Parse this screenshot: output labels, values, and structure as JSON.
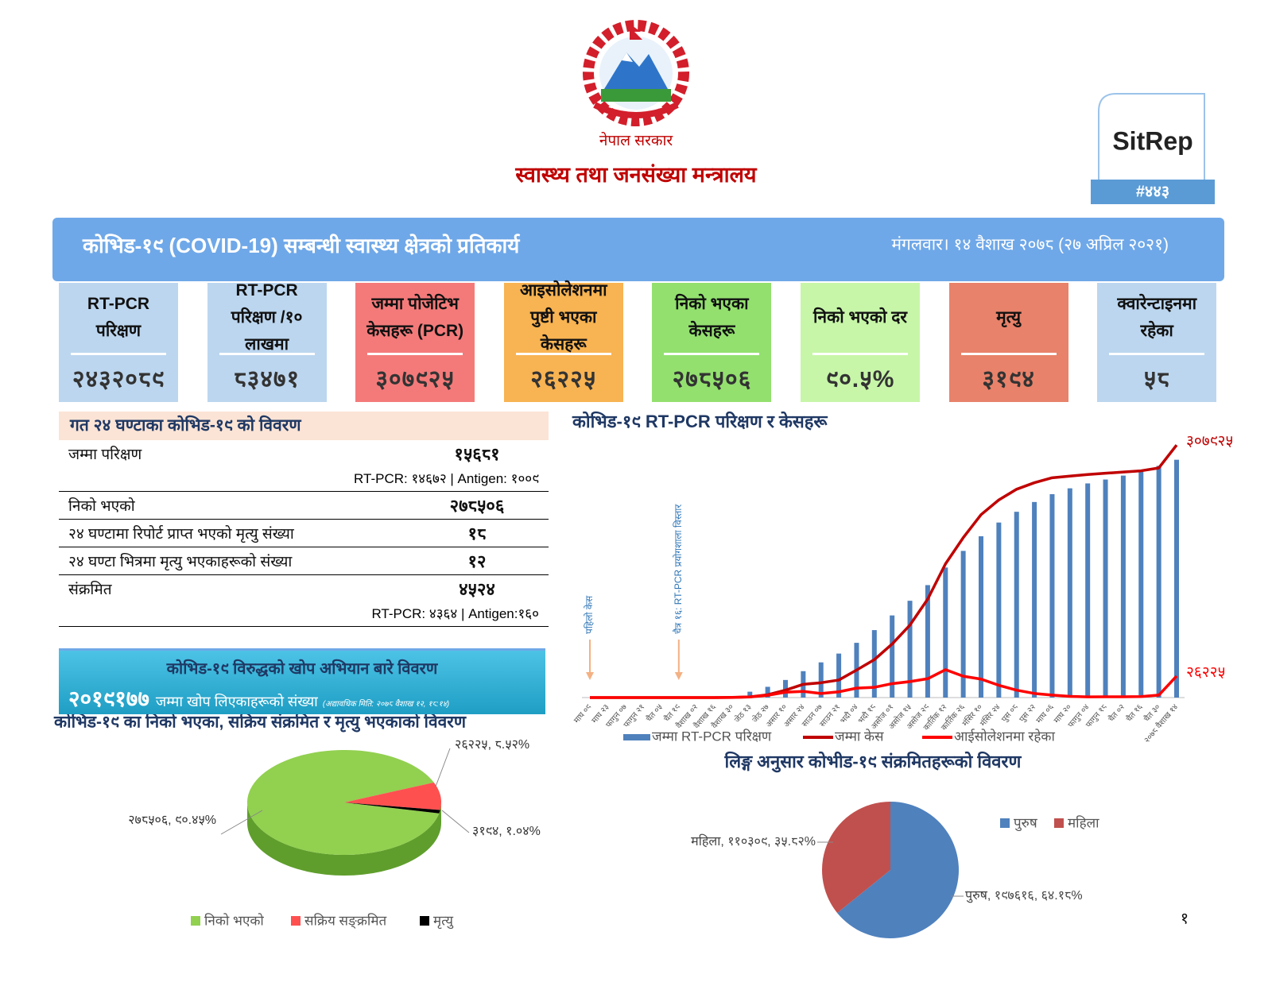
{
  "header": {
    "government": "नेपाल सरकार",
    "ministry": "स्वास्थ्य तथा जनसंख्या मन्त्रालय",
    "report": "SitRep",
    "report_number": "#४४३"
  },
  "banner": {
    "title": "कोभिड-१९ (COVID-19) सम्बन्धी स्वास्थ्य क्षेत्रको प्रतिकार्य",
    "date": "मंगलवार। १४ वैशाख २०७८ (२७ अप्रिल २०२१)"
  },
  "cards": [
    {
      "label": "RT-PCR परिक्षण",
      "value": "२४३२०८९",
      "color": "#bcd6ef"
    },
    {
      "label": "RT-PCR परिक्षण /१० लाखमा",
      "value": "८३४७१",
      "color": "#bcd6ef"
    },
    {
      "label": "जम्मा पोजेटिभ केसहरू (PCR)",
      "value": "३०७९२५",
      "color": "#f47a7a"
    },
    {
      "label": "आइसोलेशनमा पुष्टी भएका केसहरू",
      "value": "२६२२५",
      "color": "#f8b352"
    },
    {
      "label": "निको भएका केसहरू",
      "value": "२७८५०६",
      "color": "#93e06f"
    },
    {
      "label": "निको भएको दर",
      "value": "९०.५%",
      "color": "#c7f6a8"
    },
    {
      "label": "मृत्यु",
      "value": "३१९४",
      "color": "#e8826a"
    },
    {
      "label": "क्वारेन्टाइनमा रहेका",
      "value": "५८",
      "color": "#bcd6ef"
    }
  ],
  "last_24_hours": {
    "title": "गत २४ घण्टाका कोभिड-१९ को विवरण",
    "rows": [
      {
        "label": "जम्मा परिक्षण",
        "value": "१५६८१",
        "detail": "RT-PCR: १४६७२ | Antigen: १००९"
      },
      {
        "label": "निको भएको",
        "value": "२७८५०६"
      },
      {
        "label": "२४ घण्टामा रिपोर्ट प्राप्त भएको मृत्यु संख्या",
        "value": "१८"
      },
      {
        "label": "२४ घण्टा भित्रमा मृत्यु भएकाहरूको संख्या",
        "value": "१२"
      },
      {
        "label": "संक्रमित",
        "value": "४५२४",
        "detail": "RT-PCR: ४३६४ | Antigen:१६०"
      }
    ]
  },
  "vaccination": {
    "title": "कोभिड-१९ विरुद्धको खोप अभियान बारे विवरण",
    "count": "२०१९१७७",
    "text": "जम्मा खोप लिएकाहरूको संख्या",
    "note": "(अद्यावधिक मिति: २०७८ वैशाख १२, १८:१४)"
  },
  "chart_data": [
    {
      "type": "bar_line",
      "title": "कोभिड-१९ RT-PCR परिक्षण र केसहरू",
      "categories": [
        "माघ ०९",
        "माघ २३",
        "फागुन ०७",
        "फागुन २१",
        "चैत ०५",
        "चैत १९",
        "वैशाख ०२",
        "वैशाख १६",
        "वैशाख ३०",
        "जेठ १३",
        "जेठ २७",
        "असार १०",
        "असार २४",
        "साउन ०७",
        "साउन २१",
        "भदौ ०४",
        "भदौ १८",
        "असोज ०१",
        "असोज १५",
        "असोज २९",
        "कार्तिक १२",
        "कार्तिक २६",
        "मंसिर १०",
        "मंसिर २४",
        "पुस ०८",
        "पुस २२",
        "माघ ०६",
        "माघ २०",
        "फागुन ०४",
        "फागुन १८",
        "चैत ०२",
        "चैत १६",
        "चैत ३०",
        "२०७८ वैशाख १४"
      ],
      "series": [
        {
          "name": "जम्मा RT-PCR परिक्षण",
          "type": "bar",
          "axis": "y2",
          "color": "#4f81bd",
          "values": [
            0,
            0,
            0,
            0,
            0,
            300,
            800,
            2000,
            12000,
            60000,
            110000,
            180000,
            270000,
            360000,
            450000,
            560000,
            690000,
            840000,
            990000,
            1150000,
            1330000,
            1500000,
            1650000,
            1790000,
            1900000,
            2000000,
            2080000,
            2140000,
            2190000,
            2230000,
            2270000,
            2320000,
            2370000,
            2432089
          ]
        },
        {
          "name": "जम्मा केस",
          "type": "line",
          "color": "#c00000",
          "values": [
            1,
            1,
            1,
            1,
            1,
            5,
            16,
            57,
            217,
            800,
            3448,
            9026,
            16168,
            18094,
            21390,
            33533,
            46256,
            65275,
            88373,
            120000,
            163000,
            195000,
            223000,
            241000,
            254000,
            262000,
            268000,
            270000,
            272000,
            273500,
            275000,
            276500,
            280000,
            307925
          ],
          "value_labels": [
            null,
            null,
            null,
            null,
            null,
            null,
            null,
            null,
            null,
            null,
            null,
            null,
            null,
            null,
            null,
            null,
            null,
            null,
            null,
            null,
            null,
            null,
            null,
            null,
            null,
            null,
            null,
            null,
            null,
            null,
            null,
            null,
            null,
            "३०७९२५"
          ]
        },
        {
          "name": "आईसोलेशनमा रहेका",
          "type": "line",
          "color": "#ff0000",
          "values": [
            1,
            1,
            0,
            0,
            1,
            4,
            14,
            41,
            180,
            700,
            2800,
            6500,
            7500,
            5000,
            7000,
            11500,
            12500,
            17000,
            19500,
            23000,
            34000,
            26000,
            22500,
            15000,
            9000,
            5000,
            3000,
            1500,
            900,
            1000,
            1000,
            1200,
            3000,
            26225
          ],
          "value_labels": [
            null,
            null,
            null,
            null,
            null,
            null,
            null,
            null,
            null,
            null,
            null,
            null,
            null,
            null,
            null,
            null,
            null,
            null,
            null,
            null,
            null,
            null,
            null,
            null,
            null,
            null,
            null,
            null,
            null,
            null,
            null,
            null,
            null,
            "२६२२५"
          ]
        }
      ],
      "ylim": [
        0,
        310000
      ],
      "y2lim": [
        0,
        2600000
      ],
      "annotations": [
        "पहिलो केस",
        "चैत्र १६: RT-PCR प्रयोगशाला विस्तार"
      ],
      "legend": "bottom"
    },
    {
      "type": "pie",
      "style": "3d",
      "title": "कोभिड-१९ का निको भएका, सक्रिय संक्रमित र मृत्यु भएकाको विवरण",
      "categories": [
        "निको भएको",
        "सक्रिय सङ्क्रमित",
        "मृत्यु"
      ],
      "values": [
        278506,
        26225,
        3194
      ],
      "value_labels": [
        "२७८५०६, ९०.४५%",
        "२६२२५, ८.५२%",
        "३१९४, १.०४%"
      ],
      "colors": [
        "#92d050",
        "#ff5050",
        "#000000"
      ],
      "legend": "bottom"
    },
    {
      "type": "pie",
      "title": "लिङ्ग अनुसार कोभीड-१९ संक्रमितहरूको विवरण",
      "categories": [
        "पुरुष",
        "महिला"
      ],
      "values": [
        197616,
        110309
      ],
      "value_labels": [
        "पुरुष, १९७६१६, ६४.१८%",
        "महिला, ११०३०९, ३५.८२%"
      ],
      "colors": [
        "#4f81bd",
        "#c0504d"
      ],
      "legend": "top-right"
    }
  ],
  "page_number": "१"
}
